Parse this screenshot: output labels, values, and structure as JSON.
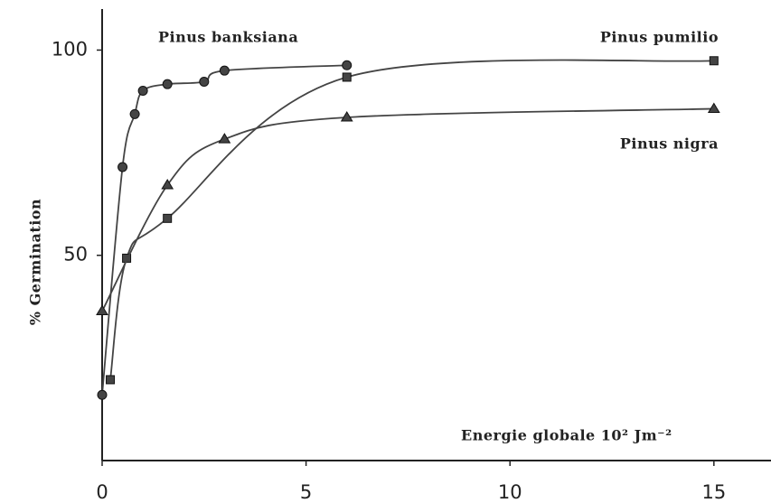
{
  "chart_data": {
    "type": "line",
    "xlabel": "Energie globale 10² Jm⁻²",
    "ylabel": "% Germination",
    "xlim": [
      0,
      16.4
    ],
    "ylim": [
      0,
      110
    ],
    "xticks": [
      0,
      5,
      10,
      15
    ],
    "yticks": [
      50,
      100
    ],
    "series": [
      {
        "name": "Pinus banksiana",
        "color": "#444444",
        "marker": "circle",
        "x": [
          0,
          0.5,
          0.8,
          1,
          1.6,
          2.5,
          3,
          6
        ],
        "values": [
          16,
          71.5,
          84.4,
          90.1,
          91.7,
          92.3,
          95,
          96.3
        ]
      },
      {
        "name": "Pinus pumilio",
        "color": "#444444",
        "marker": "square",
        "x": [
          0.2,
          0.6,
          1.6,
          6,
          15
        ],
        "values": [
          19.7,
          49.3,
          59,
          93.4,
          97.4
        ]
      },
      {
        "name": "Pinus nigra",
        "color": "#444444",
        "marker": "triangle",
        "x": [
          0,
          1.6,
          3,
          6,
          15
        ],
        "values": [
          36.4,
          67.1,
          78.3,
          83.6,
          85.7
        ]
      }
    ]
  }
}
